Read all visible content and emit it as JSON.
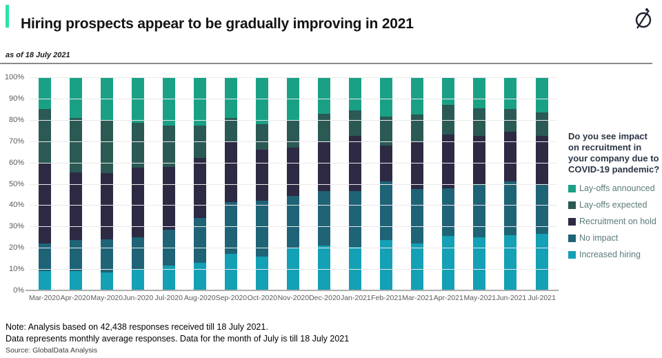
{
  "header": {
    "title": "Hiring prospects appear to be gradually improving in 2021",
    "logo_icon": "globaldata-logo-icon",
    "accent_color": "#2be3a9"
  },
  "subtitle": "as of 18 July 2021",
  "chart_data": {
    "type": "bar",
    "stacked": true,
    "percent_stacked": true,
    "title": "",
    "xlabel": "",
    "ylabel": "",
    "ylim": [
      0,
      100
    ],
    "grid": "horizontal",
    "legend_position": "right",
    "y_ticks": [
      "100%",
      "90%",
      "80%",
      "70%",
      "60%",
      "50%",
      "40%",
      "30%",
      "20%",
      "10%",
      "0%"
    ],
    "categories": [
      "Mar-2020",
      "Apr-2020",
      "May-2020",
      "Jun-2020",
      "Jul-2020",
      "Aug-2020",
      "Sep-2020",
      "Oct-2020",
      "Nov-2020",
      "Dec-2020",
      "Jan-2021",
      "Feb-2021",
      "Mar-2021",
      "Apr-2021",
      "May-2021",
      "Jun-2021",
      "Jul-2021"
    ],
    "series": [
      {
        "name": "Increased hiring",
        "color": "#14a0b5",
        "values": [
          9,
          9,
          8.5,
          10,
          11.5,
          13,
          17,
          16,
          20,
          21,
          20.5,
          23.5,
          22,
          25.5,
          25,
          26,
          26.5
        ]
      },
      {
        "name": "No impact",
        "color": "#1f6377",
        "values": [
          13,
          14.5,
          15.5,
          15,
          17,
          21,
          24.5,
          26,
          24.5,
          25.5,
          26,
          27.5,
          25.5,
          22.5,
          24.5,
          25,
          23
        ]
      },
      {
        "name": "Recruitment on hold",
        "color": "#2d2a44",
        "values": [
          38,
          32,
          31,
          32.5,
          29.5,
          28,
          28,
          24,
          22.5,
          23.5,
          26,
          17,
          22.5,
          25,
          23,
          23.5,
          23
        ]
      },
      {
        "name": "Lay-offs expected",
        "color": "#2b5954",
        "values": [
          25,
          25.5,
          24.5,
          21,
          19.5,
          15.5,
          11.5,
          12,
          13,
          13,
          12,
          13.5,
          12.5,
          14,
          13,
          10.5,
          11
        ]
      },
      {
        "name": "Lay-offs announced",
        "color": "#1aa185",
        "values": [
          15,
          19,
          20.5,
          21.5,
          22.5,
          22.5,
          19,
          22,
          20,
          17,
          15.5,
          18.5,
          17.5,
          13,
          14.5,
          15,
          16.5
        ]
      }
    ]
  },
  "legend": {
    "question": "Do you see impact on recruitment in your company due to COVID-19 pandemic?",
    "items": [
      {
        "label": "Lay-offs announced",
        "color": "#1aa185"
      },
      {
        "label": "Lay-offs expected",
        "color": "#2b5954"
      },
      {
        "label": "Recruitment on hold",
        "color": "#2d2a44"
      },
      {
        "label": "No impact",
        "color": "#1f6377"
      },
      {
        "label": "Increased hiring",
        "color": "#14a0b5"
      }
    ]
  },
  "notes": {
    "line1": "Note: Analysis based on 42,438 responses received till 18 July 2021.",
    "line2": "Data represents monthly average responses. Data for the month of July is till 18 July 2021",
    "source": "Source: GlobalData Analysis"
  }
}
